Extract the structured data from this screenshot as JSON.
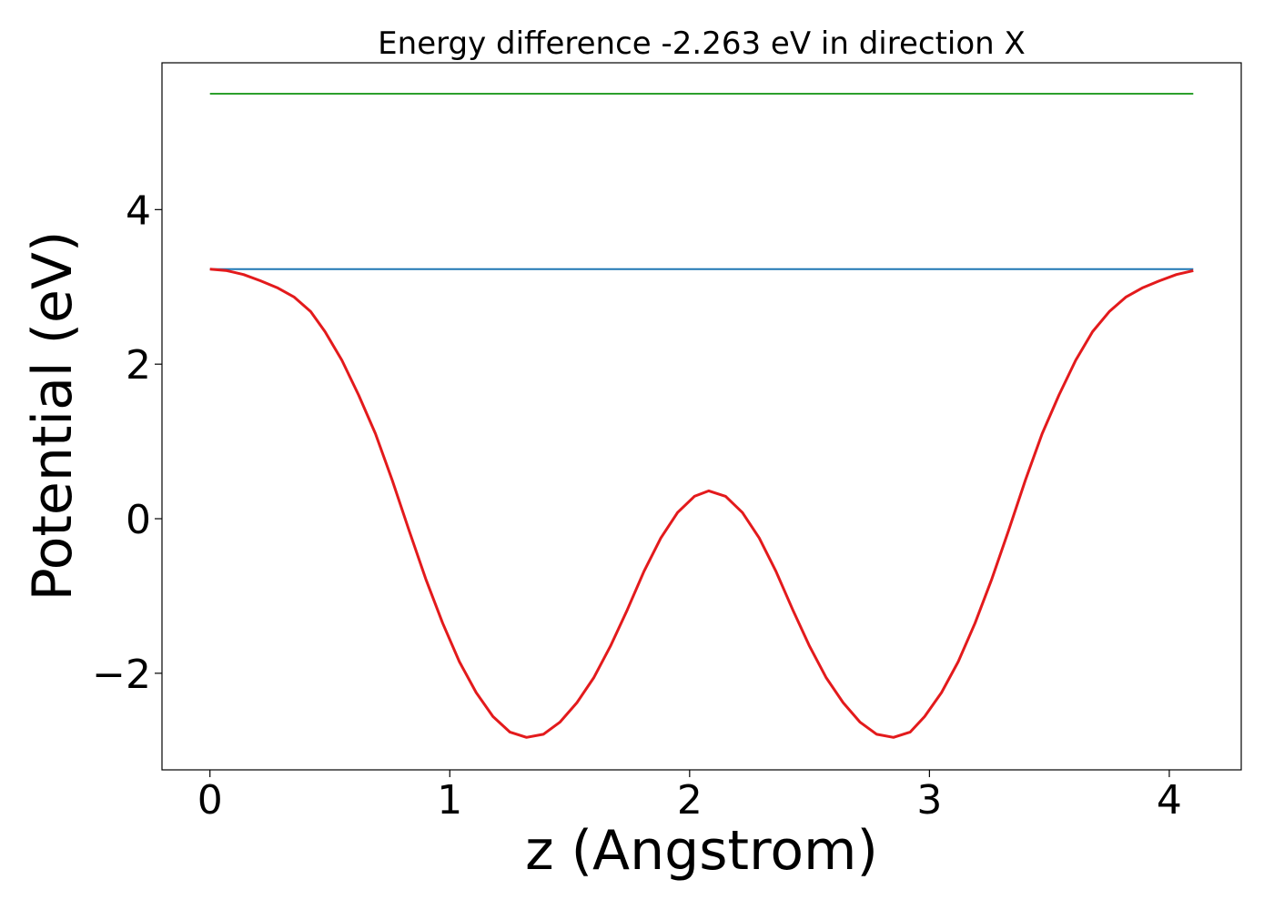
{
  "chart_data": {
    "type": "line",
    "title": "Energy difference -2.263 eV in direction X",
    "xlabel": "z (Angstrom)",
    "ylabel": "Potential (eV)",
    "xlim": [
      -0.2,
      4.3
    ],
    "ylim": [
      -3.25,
      5.9
    ],
    "xticks": [
      0,
      1,
      2,
      3,
      4
    ],
    "yticks": [
      -2,
      0,
      2,
      4
    ],
    "xtick_labels": [
      "0",
      "1",
      "2",
      "3",
      "4"
    ],
    "ytick_labels": [
      "−2",
      "0",
      "2",
      "4"
    ],
    "grid": false,
    "legend": "none",
    "series": [
      {
        "color": "#2ca02c",
        "x": [
          0,
          4.1
        ],
        "y": [
          5.5,
          5.5
        ]
      },
      {
        "color": "#1f77b4",
        "x": [
          0,
          4.1
        ],
        "y": [
          3.23,
          3.23
        ]
      },
      {
        "color": "#e31a1c",
        "x": [
          0,
          0.07,
          0.14,
          0.21,
          0.28,
          0.35,
          0.42,
          0.48,
          0.55,
          0.62,
          0.69,
          0.76,
          0.83,
          0.9,
          0.97,
          1.04,
          1.11,
          1.18,
          1.25,
          1.32,
          1.39,
          1.46,
          1.53,
          1.6,
          1.67,
          1.74,
          1.81,
          1.88,
          1.95,
          2.02,
          2.08,
          2.15,
          2.22,
          2.29,
          2.36,
          2.43,
          2.5,
          2.57,
          2.64,
          2.71,
          2.78,
          2.85,
          2.92,
          2.98,
          3.05,
          3.12,
          3.19,
          3.26,
          3.33,
          3.4,
          3.47,
          3.54,
          3.61,
          3.68,
          3.75,
          3.82,
          3.89,
          3.96,
          4.03,
          4.1
        ],
        "y": [
          3.23,
          3.21,
          3.16,
          3.08,
          2.99,
          2.87,
          2.68,
          2.42,
          2.05,
          1.6,
          1.1,
          0.5,
          -0.15,
          -0.78,
          -1.35,
          -1.85,
          -2.25,
          -2.56,
          -2.76,
          -2.83,
          -2.79,
          -2.63,
          -2.38,
          -2.06,
          -1.65,
          -1.18,
          -0.68,
          -0.25,
          0.08,
          0.29,
          0.36,
          0.29,
          0.08,
          -0.25,
          -0.68,
          -1.18,
          -1.65,
          -2.06,
          -2.38,
          -2.63,
          -2.79,
          -2.83,
          -2.76,
          -2.56,
          -2.25,
          -1.85,
          -1.35,
          -0.78,
          -0.15,
          0.5,
          1.1,
          1.6,
          2.05,
          2.42,
          2.68,
          2.87,
          2.99,
          3.08,
          3.16,
          3.21
        ]
      }
    ]
  }
}
